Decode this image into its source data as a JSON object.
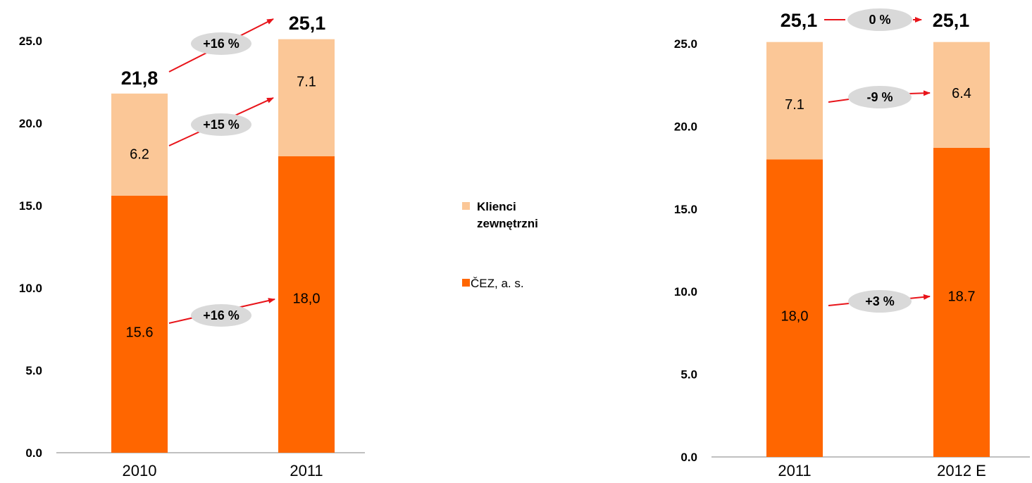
{
  "colors": {
    "external": "#FBC797",
    "cez": "#FF6600",
    "arrow": "#E8141A",
    "pill": "#D9D9D9",
    "axis": "#808080"
  },
  "legend": {
    "items": [
      {
        "label_lines": [
          "Klienci",
          "zewnętrzni"
        ],
        "color": "#FBC797",
        "bold": true
      },
      {
        "label_lines": [
          "ČEZ, a. s."
        ],
        "color": "#FF6600",
        "bold": false
      }
    ]
  },
  "chart_data": [
    {
      "type": "bar",
      "stacked": true,
      "categories": [
        "2010",
        "2011"
      ],
      "ylim": [
        0,
        25
      ],
      "yticks": [
        "0.0",
        "5.0",
        "10.0",
        "15.0",
        "20.0",
        "25.0"
      ],
      "series": [
        {
          "name": "ČEZ, a. s.",
          "values": [
            15.6,
            18.0
          ],
          "labels": [
            "15.6",
            "18,0"
          ]
        },
        {
          "name": "Klienci zewnętrzni",
          "values": [
            6.2,
            7.1
          ],
          "labels": [
            "6.2",
            "7.1"
          ]
        }
      ],
      "totals": [
        "21,8",
        "25,1"
      ],
      "changes": {
        "total": "+16 %",
        "external": "+15 %",
        "cez": "+16 %"
      }
    },
    {
      "type": "bar",
      "stacked": true,
      "categories": [
        "2011",
        "2012 E"
      ],
      "ylim": [
        0,
        25
      ],
      "yticks": [
        "0.0",
        "5.0",
        "10.0",
        "15.0",
        "20.0",
        "25.0"
      ],
      "series": [
        {
          "name": "ČEZ, a. s.",
          "values": [
            18.0,
            18.7
          ],
          "labels": [
            "18,0",
            "18.7"
          ]
        },
        {
          "name": "Klienci zewnętrzni",
          "values": [
            7.1,
            6.4
          ],
          "labels": [
            "7.1",
            "6.4"
          ]
        }
      ],
      "totals": [
        "25,1",
        "25,1"
      ],
      "changes": {
        "total": "0 %",
        "external": "-9 %",
        "cez": "+3 %"
      }
    }
  ]
}
